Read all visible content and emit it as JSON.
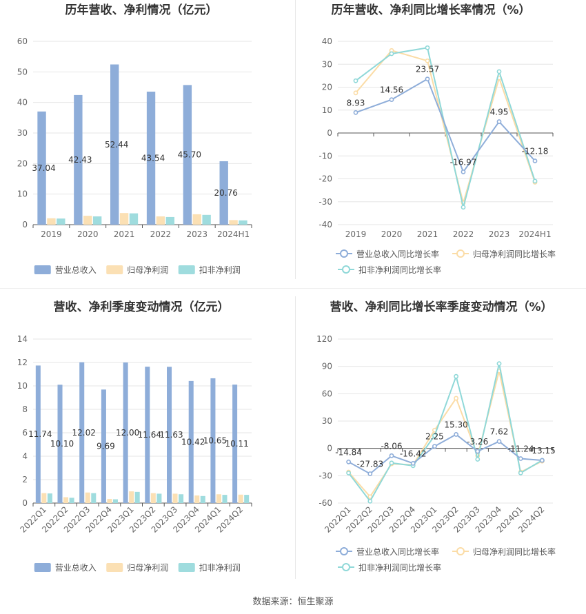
{
  "source_note": "数据来源：恒生聚源",
  "chart_data": [
    {
      "type": "bar",
      "title": "历年营收、净利情况（亿元）",
      "categories": [
        "2019",
        "2020",
        "2021",
        "2022",
        "2023",
        "2024H1"
      ],
      "ylim": [
        0,
        60
      ],
      "yticks": [
        0,
        10,
        20,
        30,
        40,
        50,
        60
      ],
      "grid": true,
      "legend_position": "bottom",
      "series": [
        {
          "name": "营业总收入",
          "color": "#8eadd9",
          "values": [
            37.04,
            42.43,
            52.44,
            43.54,
            45.7,
            20.76
          ],
          "labels": [
            "37.04",
            "42.43",
            "52.44",
            "43.54",
            "45.70",
            "20.76"
          ]
        },
        {
          "name": "归母净利润",
          "color": "#fbe0b4",
          "values": [
            2.1,
            2.9,
            3.8,
            2.7,
            3.4,
            1.5
          ]
        },
        {
          "name": "扣非净利润",
          "color": "#9fdcde",
          "values": [
            2.0,
            2.7,
            3.7,
            2.5,
            3.2,
            1.4
          ]
        }
      ]
    },
    {
      "type": "line",
      "title": "历年营收、净利同比增长率情况（%）",
      "categories": [
        "2019",
        "2020",
        "2021",
        "2022",
        "2023",
        "2024H1"
      ],
      "ylim": [
        -40,
        40
      ],
      "yticks": [
        -40,
        -30,
        -20,
        -10,
        0,
        10,
        20,
        30,
        40
      ],
      "grid": true,
      "legend_position": "bottom",
      "series": [
        {
          "name": "营业总收入同比增长率",
          "color": "#8eadd9",
          "values": [
            8.93,
            14.56,
            23.57,
            -16.97,
            4.95,
            -12.18
          ],
          "labels": [
            "8.93",
            "14.56",
            "23.57",
            "-16.97",
            "4.95",
            "-12.18"
          ]
        },
        {
          "name": "归母净利润同比增长率",
          "color": "#fbdca6",
          "values": [
            17.5,
            36.0,
            31.5,
            -30.5,
            24.0,
            -21.5
          ]
        },
        {
          "name": "扣非净利润同比增长率",
          "color": "#8fd8d8",
          "values": [
            22.8,
            34.6,
            37.2,
            -32.4,
            26.8,
            -21.0
          ]
        }
      ]
    },
    {
      "type": "bar",
      "title": "营收、净利季度变动情况（亿元）",
      "categories": [
        "2022Q1",
        "2022Q2",
        "2022Q3",
        "2022Q4",
        "2023Q1",
        "2023Q2",
        "2023Q3",
        "2023Q4",
        "2024Q1",
        "2024Q2"
      ],
      "ylim": [
        0,
        14
      ],
      "yticks": [
        0,
        2,
        4,
        6,
        8,
        10,
        12,
        14
      ],
      "grid": true,
      "legend_position": "bottom",
      "series": [
        {
          "name": "营业总收入",
          "color": "#8eadd9",
          "values": [
            11.74,
            10.1,
            12.02,
            9.69,
            12.0,
            11.64,
            11.63,
            10.42,
            10.65,
            10.11
          ],
          "labels": [
            "11.74",
            "10.10",
            "12.02",
            "9.69",
            "12.00",
            "11.64",
            "11.63",
            "10.42",
            "10.65",
            "10.11"
          ]
        },
        {
          "name": "归母净利润",
          "color": "#fbe0b4",
          "values": [
            0.85,
            0.5,
            0.9,
            0.35,
            1.0,
            0.85,
            0.8,
            0.65,
            0.75,
            0.72
          ]
        },
        {
          "name": "扣非净利润",
          "color": "#9fdcde",
          "values": [
            0.82,
            0.45,
            0.85,
            0.32,
            0.95,
            0.8,
            0.75,
            0.6,
            0.7,
            0.7
          ]
        }
      ]
    },
    {
      "type": "line",
      "title": "营收、净利同比增长率季度变动情况（%）",
      "categories": [
        "2022Q1",
        "2022Q2",
        "2022Q3",
        "2022Q4",
        "2023Q1",
        "2023Q2",
        "2023Q3",
        "2023Q4",
        "2024Q1",
        "2024Q2"
      ],
      "ylim": [
        -60,
        120
      ],
      "yticks": [
        -60,
        -30,
        0,
        30,
        60,
        90,
        120
      ],
      "grid": true,
      "legend_position": "bottom",
      "series": [
        {
          "name": "营业总收入同比增长率",
          "color": "#8eadd9",
          "values": [
            -14.84,
            -27.83,
            -8.06,
            -16.42,
            2.25,
            15.3,
            -3.26,
            7.62,
            -11.24,
            -13.15
          ],
          "labels": [
            "-14.84",
            "-27.83",
            "-8.06",
            "-16.42",
            "2.25",
            "15.30",
            "-3.26",
            "7.62",
            "-11.24",
            "-13.15"
          ]
        },
        {
          "name": "归母净利润同比增长率",
          "color": "#fbdca6",
          "values": [
            -26,
            -53,
            -17,
            -18,
            20,
            55,
            -8,
            85,
            -26,
            -14
          ]
        },
        {
          "name": "扣非净利润同比增长率",
          "color": "#8fd8d8",
          "values": [
            -27,
            -58,
            -16,
            -19,
            14,
            79,
            -12,
            93,
            -27,
            -13
          ]
        }
      ]
    }
  ]
}
